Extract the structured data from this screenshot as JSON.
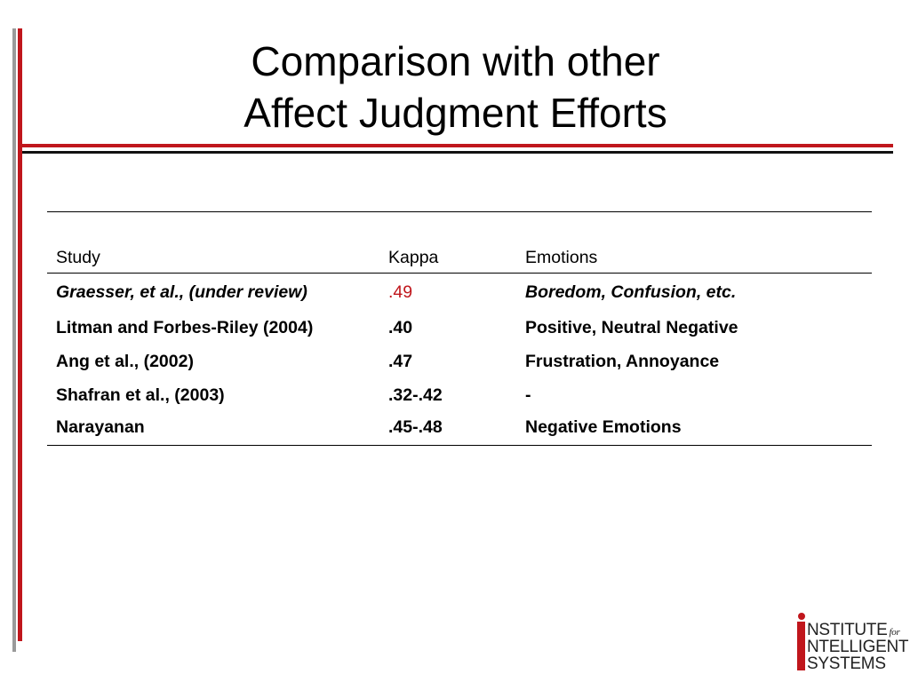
{
  "slide": {
    "title_line1": "Comparison with other",
    "title_line2": "Affect Judgment Efforts"
  },
  "table": {
    "headers": {
      "study": "Study",
      "kappa": "Kappa",
      "emotions": "Emotions"
    },
    "rows": [
      {
        "study": "Graesser, et al., (under review)",
        "kappa": ".49",
        "emotions": "Boredom, Confusion, etc."
      },
      {
        "study": "Litman and Forbes-Riley (2004)",
        "kappa": ".40",
        "emotions": "Positive, Neutral Negative"
      },
      {
        "study": "Ang et al., (2002)",
        "kappa": ".47",
        "emotions": "Frustration, Annoyance"
      },
      {
        "study": "Shafran et al., (2003)",
        "kappa": ".32-.42",
        "emotions": "-"
      },
      {
        "study": "Narayanan",
        "kappa": ".45-.48",
        "emotions": "Negative Emotions"
      }
    ],
    "highlight_color": "#c0161c"
  },
  "logo": {
    "line1": "NSTITUTE",
    "for": "for",
    "line2": "NTELLIGENT",
    "line3": "SYSTEMS",
    "accent_color": "#c0161c"
  }
}
